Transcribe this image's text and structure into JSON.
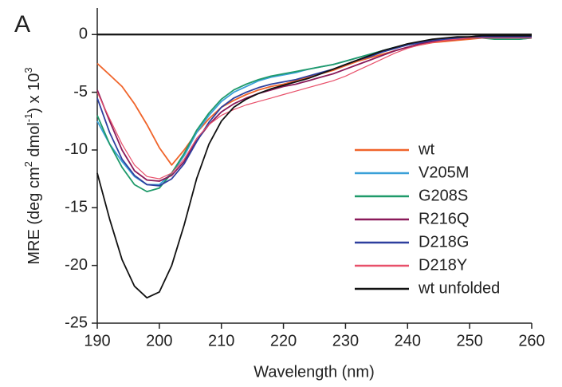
{
  "chart_data": {
    "type": "line",
    "panel_label": "A",
    "xlabel": "Wavelength (nm)",
    "ylabel": [
      {
        "text": "MRE (deg cm"
      },
      {
        "text": "2",
        "sup": true
      },
      {
        "text": " dmol"
      },
      {
        "text": "-1",
        "sup": true
      },
      {
        "text": ") x 10"
      },
      {
        "text": "3",
        "sup": true
      }
    ],
    "xlim": [
      190,
      260
    ],
    "ylim": [
      -25,
      2.3
    ],
    "xticks": [
      190,
      200,
      210,
      220,
      230,
      240,
      250,
      260
    ],
    "yticks": [
      0,
      -5,
      -10,
      -15,
      -20,
      -25
    ],
    "hline": 0,
    "legend": "right",
    "x": [
      190,
      192,
      194,
      196,
      198,
      200,
      202,
      204,
      206,
      208,
      210,
      212,
      214,
      216,
      218,
      220,
      222,
      224,
      226,
      228,
      230,
      232,
      234,
      236,
      238,
      240,
      242,
      244,
      246,
      248,
      250,
      252,
      254,
      256,
      258,
      260
    ],
    "series": [
      {
        "name": "wt",
        "color": "#f0642a",
        "values": [
          -2.5,
          -3.5,
          -4.5,
          -6,
          -7.8,
          -9.8,
          -11.3,
          -10,
          -8.5,
          -7.3,
          -6.3,
          -5.7,
          -5.2,
          -4.8,
          -4.5,
          -4.3,
          -4.0,
          -3.7,
          -3.4,
          -3.1,
          -2.7,
          -2.3,
          -2.0,
          -1.7,
          -1.4,
          -1.1,
          -0.9,
          -0.7,
          -0.6,
          -0.5,
          -0.4,
          -0.3,
          -0.3,
          -0.3,
          -0.2,
          -0.2
        ]
      },
      {
        "name": "V205M",
        "color": "#3aa0d8",
        "values": [
          -7.5,
          -9.5,
          -11,
          -12.3,
          -13,
          -13,
          -12,
          -10.5,
          -8.5,
          -7,
          -5.8,
          -5,
          -4.5,
          -4,
          -3.7,
          -3.5,
          -3.3,
          -3,
          -2.8,
          -2.6,
          -2.3,
          -2,
          -1.7,
          -1.4,
          -1.1,
          -0.9,
          -0.7,
          -0.5,
          -0.4,
          -0.3,
          -0.3,
          -0.2,
          -0.3,
          -0.4,
          -0.4,
          -0.3
        ]
      },
      {
        "name": "G208S",
        "color": "#1f9a6a",
        "values": [
          -7,
          -9.5,
          -11.5,
          -13,
          -13.6,
          -13.3,
          -12,
          -10.3,
          -8.3,
          -6.8,
          -5.6,
          -4.8,
          -4.3,
          -3.9,
          -3.6,
          -3.4,
          -3.2,
          -3,
          -2.8,
          -2.6,
          -2.3,
          -2,
          -1.7,
          -1.4,
          -1.1,
          -0.9,
          -0.7,
          -0.5,
          -0.4,
          -0.3,
          -0.3,
          -0.3,
          -0.4,
          -0.4,
          -0.4,
          -0.3
        ]
      },
      {
        "name": "R216Q",
        "color": "#8a1a5a",
        "values": [
          -4.8,
          -7.5,
          -10,
          -11.8,
          -12.6,
          -12.7,
          -12.2,
          -11,
          -9.2,
          -7.8,
          -6.7,
          -6,
          -5.5,
          -5.1,
          -4.8,
          -4.5,
          -4.3,
          -4,
          -3.7,
          -3.4,
          -3.0,
          -2.6,
          -2.2,
          -1.8,
          -1.4,
          -1.1,
          -0.8,
          -0.6,
          -0.5,
          -0.4,
          -0.3,
          -0.2,
          -0.2,
          -0.2,
          -0.2,
          -0.2
        ]
      },
      {
        "name": "D218G",
        "color": "#2e3f9e",
        "values": [
          -5.5,
          -8.5,
          -10.8,
          -12.2,
          -13,
          -13.1,
          -12.5,
          -11.2,
          -9.3,
          -7.6,
          -6.3,
          -5.5,
          -5,
          -4.6,
          -4.3,
          -4.1,
          -3.9,
          -3.6,
          -3.3,
          -3,
          -2.6,
          -2.2,
          -1.9,
          -1.5,
          -1.2,
          -0.9,
          -0.7,
          -0.5,
          -0.4,
          -0.3,
          -0.2,
          -0.2,
          -0.2,
          -0.2,
          -0.2,
          -0.2
        ]
      },
      {
        "name": "D218Y",
        "color": "#e8506a",
        "values": [
          -5,
          -7.3,
          -9.5,
          -11.3,
          -12.3,
          -12.5,
          -12,
          -10.8,
          -9,
          -7.8,
          -7,
          -6.5,
          -6.1,
          -5.8,
          -5.5,
          -5.2,
          -4.9,
          -4.6,
          -4.3,
          -4,
          -3.6,
          -3.1,
          -2.6,
          -2.1,
          -1.6,
          -1.2,
          -0.9,
          -0.7,
          -0.5,
          -0.4,
          -0.3,
          -0.3,
          -0.3,
          -0.3,
          -0.3,
          -0.3
        ]
      },
      {
        "name": "wt unfolded",
        "color": "#111111",
        "values": [
          -12,
          -16,
          -19.5,
          -21.8,
          -22.8,
          -22.3,
          -20,
          -16.5,
          -12.5,
          -9.5,
          -7.5,
          -6.3,
          -5.6,
          -5.1,
          -4.7,
          -4.4,
          -4.1,
          -3.8,
          -3.4,
          -3,
          -2.6,
          -2.2,
          -1.8,
          -1.4,
          -1.1,
          -0.8,
          -0.6,
          -0.4,
          -0.3,
          -0.2,
          -0.2,
          -0.1,
          -0.1,
          -0.1,
          -0.1,
          -0.1
        ]
      }
    ]
  }
}
